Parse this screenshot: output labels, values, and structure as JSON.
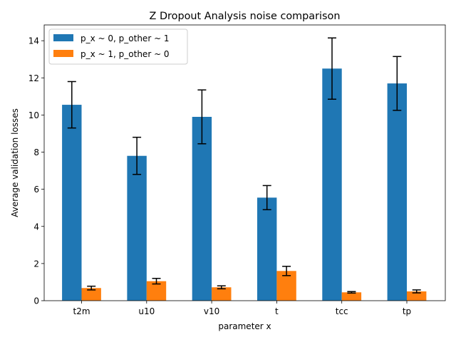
{
  "chart_data": {
    "type": "bar",
    "title": "Z Dropout Analysis noise comparison",
    "xlabel": "parameter x",
    "ylabel": "Average validation losses",
    "categories": [
      "t2m",
      "u10",
      "v10",
      "t",
      "tcc",
      "tp"
    ],
    "ylim": [
      0,
      14.85
    ],
    "yticks": [
      0,
      2,
      4,
      6,
      8,
      10,
      12,
      14
    ],
    "grid": false,
    "legend_position": "top-left",
    "series": [
      {
        "name": "p_x ~ 0, p_other ~ 1",
        "color": "#1f77b4",
        "values": [
          10.55,
          7.8,
          9.9,
          5.55,
          12.5,
          11.7
        ],
        "errors": [
          1.25,
          1.0,
          1.45,
          0.65,
          1.65,
          1.45
        ]
      },
      {
        "name": "p_x ~ 1, p_other ~ 0",
        "color": "#ff7f0e",
        "values": [
          0.68,
          1.05,
          0.72,
          1.6,
          0.45,
          0.5
        ],
        "errors": [
          0.1,
          0.15,
          0.08,
          0.25,
          0.04,
          0.08
        ]
      }
    ]
  }
}
